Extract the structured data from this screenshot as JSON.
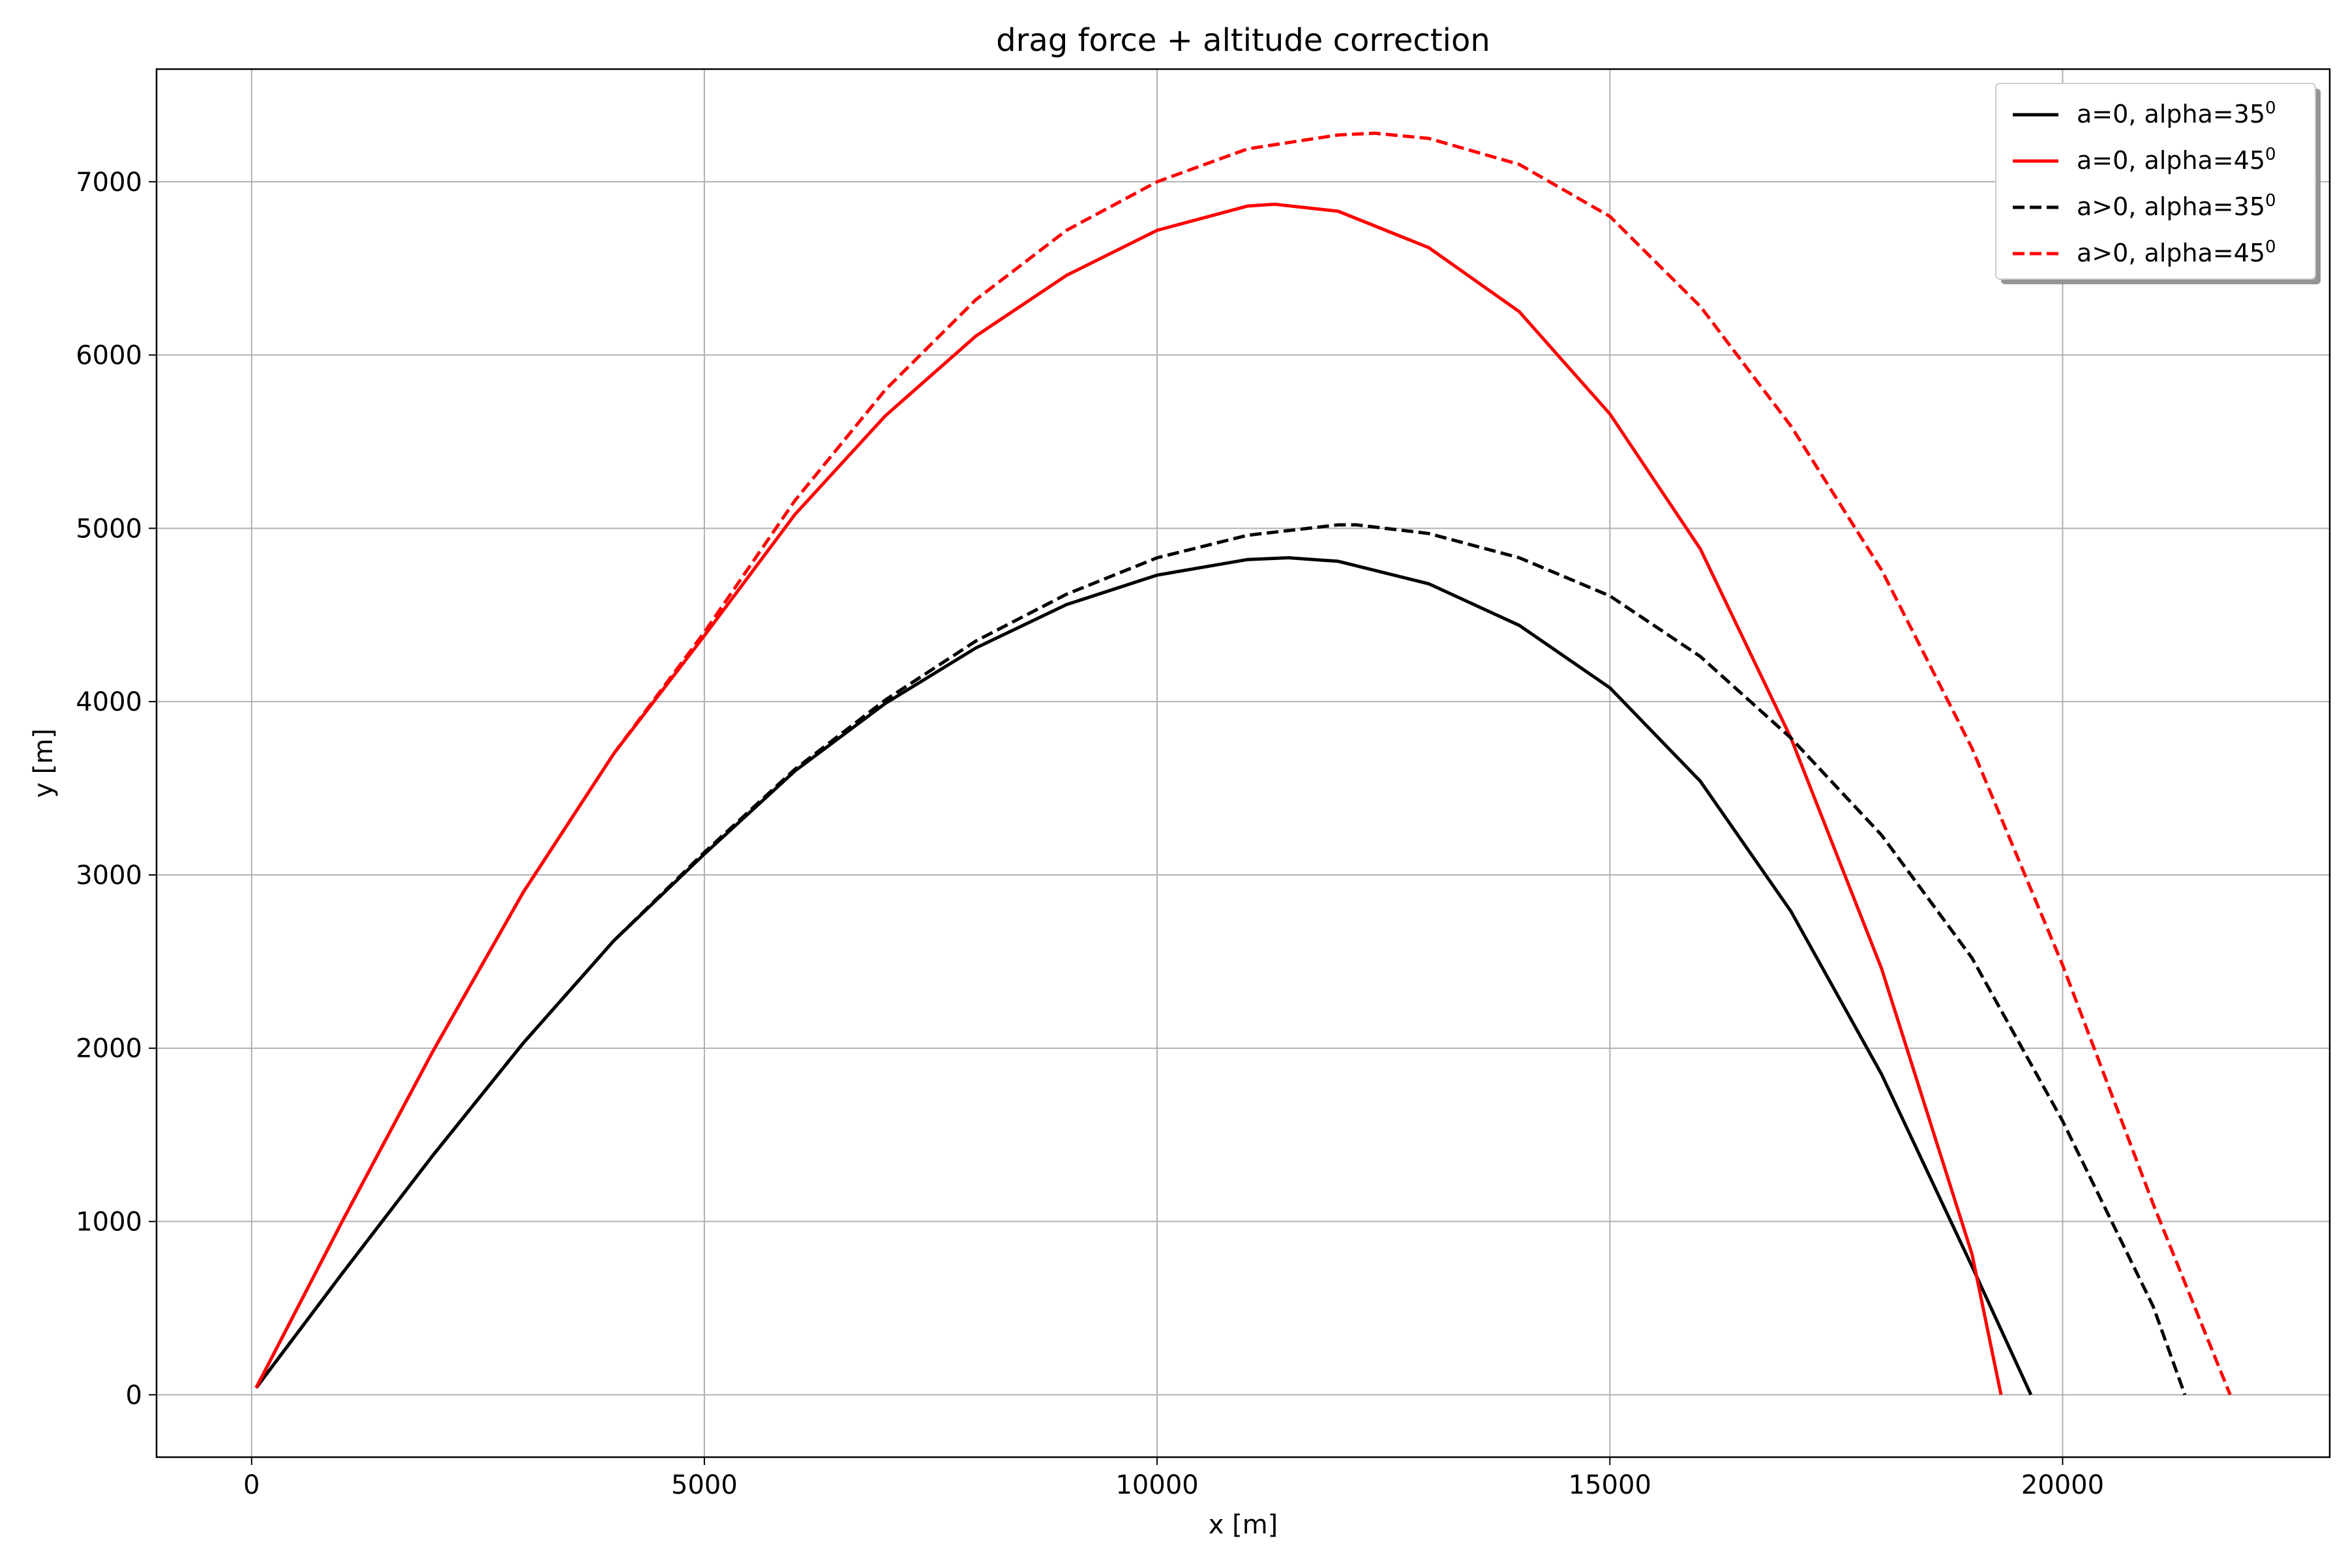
{
  "chart_data": {
    "type": "line",
    "title": "drag force + altitude correction",
    "xlabel": "x [m]",
    "ylabel": "y [m]",
    "xlim": [
      -1050,
      22950
    ],
    "ylim": [
      -360,
      7650
    ],
    "xticks": [
      0,
      5000,
      10000,
      15000,
      20000
    ],
    "yticks": [
      0,
      1000,
      2000,
      3000,
      4000,
      5000,
      6000,
      7000
    ],
    "grid": true,
    "legend_position": "top-right",
    "series": [
      {
        "name": "a=0, alpha=35",
        "name_sup": "0",
        "color": "#000000",
        "style": "solid",
        "x": [
          50,
          1000,
          2000,
          3000,
          4000,
          5000,
          6000,
          7000,
          8000,
          9000,
          10000,
          11000,
          11450,
          12000,
          13000,
          14000,
          15000,
          16000,
          17000,
          18000,
          19000,
          19650
        ],
        "y": [
          40,
          700,
          1380,
          2030,
          2620,
          3120,
          3600,
          3990,
          4310,
          4560,
          4730,
          4820,
          4830,
          4810,
          4680,
          4440,
          4080,
          3540,
          2790,
          1850,
          740,
          0
        ]
      },
      {
        "name": "a=0, alpha=45",
        "name_sup": "0",
        "color": "#ff0000",
        "style": "solid",
        "x": [
          50,
          1000,
          2000,
          3000,
          4000,
          5000,
          6000,
          7000,
          8000,
          9000,
          10000,
          11000,
          11300,
          12000,
          13000,
          14000,
          15000,
          16000,
          17000,
          18000,
          19000,
          19320
        ],
        "y": [
          40,
          1000,
          1980,
          2900,
          3700,
          4380,
          5080,
          5650,
          6110,
          6460,
          6720,
          6860,
          6870,
          6830,
          6620,
          6250,
          5660,
          4880,
          3790,
          2460,
          810,
          0
        ]
      },
      {
        "name": "a>0, alpha=35",
        "name_sup": "0",
        "color": "#000000",
        "style": "dashed",
        "x": [
          50,
          1000,
          2000,
          3000,
          4000,
          5000,
          6000,
          7000,
          8000,
          9000,
          10000,
          11000,
          12000,
          12200,
          13000,
          14000,
          15000,
          16000,
          17000,
          18000,
          19000,
          20000,
          21000,
          21350
        ],
        "y": [
          40,
          700,
          1380,
          2030,
          2620,
          3130,
          3610,
          4010,
          4350,
          4620,
          4830,
          4960,
          5020,
          5020,
          4970,
          4830,
          4610,
          4260,
          3790,
          3230,
          2520,
          1580,
          510,
          0
        ]
      },
      {
        "name": "a>0, alpha=45",
        "name_sup": "0",
        "color": "#ff0000",
        "style": "dashed",
        "x": [
          50,
          1000,
          2000,
          3000,
          4000,
          5000,
          6000,
          7000,
          8000,
          9000,
          10000,
          11000,
          12000,
          12400,
          13000,
          14000,
          15000,
          16000,
          17000,
          18000,
          19000,
          20000,
          21000,
          21850
        ],
        "y": [
          40,
          1000,
          1980,
          2900,
          3700,
          4400,
          5160,
          5800,
          6320,
          6720,
          7000,
          7190,
          7270,
          7280,
          7250,
          7100,
          6800,
          6280,
          5590,
          4760,
          3730,
          2480,
          1100,
          0
        ]
      }
    ]
  }
}
